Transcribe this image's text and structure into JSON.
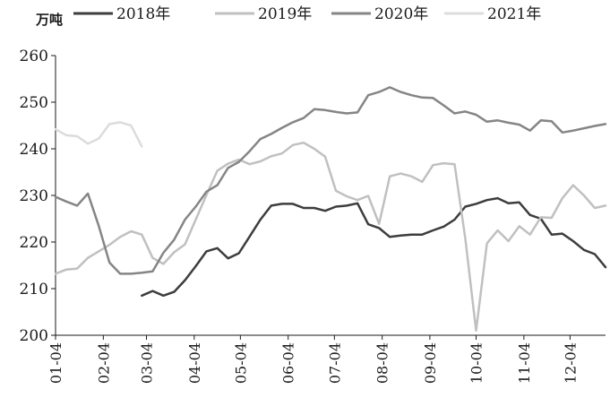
{
  "chart_data": {
    "type": "line",
    "unit_label": "万吨",
    "ylim": [
      200,
      260
    ],
    "yticks": [
      200,
      210,
      220,
      230,
      240,
      250,
      260
    ],
    "weeks": 52,
    "xticks": [
      {
        "label": "01-04",
        "week": 0
      },
      {
        "label": "02-04",
        "week": 4.43
      },
      {
        "label": "03-04",
        "week": 8.43
      },
      {
        "label": "04-04",
        "week": 12.86
      },
      {
        "label": "05-04",
        "week": 17.14
      },
      {
        "label": "06-04",
        "week": 21.57
      },
      {
        "label": "07-04",
        "week": 25.86
      },
      {
        "label": "08-04",
        "week": 30.29
      },
      {
        "label": "09-04",
        "week": 34.71
      },
      {
        "label": "10-04",
        "week": 39.0
      },
      {
        "label": "11-04",
        "week": 43.43
      },
      {
        "label": "12-04",
        "week": 47.71
      }
    ],
    "legend": {
      "position": "top"
    },
    "series": [
      {
        "name": "2018年",
        "color": "#3d3d3d",
        "start_week": 8,
        "values": [
          208.5,
          209.5,
          208.5,
          209.3,
          211.8,
          214.8,
          218.0,
          218.7,
          216.5,
          217.6,
          221.2,
          224.8,
          227.8,
          228.2,
          228.2,
          227.3,
          227.3,
          226.7,
          227.6,
          227.8,
          228.3,
          223.8,
          223.0,
          221.1,
          221.4,
          221.6,
          221.6,
          222.5,
          223.3,
          224.8,
          227.6,
          228.2,
          229.0,
          229.4,
          228.3,
          228.5,
          225.8,
          225.0,
          221.6,
          221.8,
          220.2,
          218.3,
          217.4,
          214.6
        ]
      },
      {
        "name": "2019年",
        "color": "#c0c0c0",
        "start_week": 0,
        "values": [
          213.2,
          214.1,
          214.3,
          216.6,
          218.0,
          219.4,
          221.1,
          222.3,
          221.6,
          216.6,
          215.3,
          217.8,
          219.5,
          224.8,
          230.1,
          235.3,
          236.8,
          237.7,
          236.7,
          237.3,
          238.4,
          239.0,
          240.8,
          241.3,
          240.0,
          238.3,
          231.0,
          229.8,
          229.0,
          229.9,
          223.9,
          234.1,
          234.7,
          234.1,
          232.9,
          236.5,
          236.9,
          236.7,
          220.7,
          201.0,
          219.7,
          222.5,
          220.2,
          223.4,
          221.6,
          225.3,
          225.2,
          229.4,
          232.2,
          230.0,
          227.3,
          227.8
        ]
      },
      {
        "name": "2020年",
        "color": "#858585",
        "start_week": 0,
        "values": [
          229.7,
          228.7,
          227.8,
          230.4,
          223.5,
          215.6,
          213.2,
          213.2,
          213.4,
          213.7,
          217.7,
          220.5,
          224.8,
          227.6,
          230.8,
          232.2,
          235.9,
          237.2,
          239.5,
          242.1,
          243.2,
          244.5,
          245.7,
          246.6,
          248.5,
          248.3,
          247.9,
          247.6,
          247.8,
          251.5,
          252.2,
          253.2,
          252.2,
          251.5,
          251.0,
          250.9,
          249.3,
          247.6,
          248.0,
          247.3,
          245.8,
          246.1,
          245.6,
          245.2,
          243.9,
          246.1,
          245.9,
          243.5,
          243.9,
          244.4,
          244.9,
          245.3
        ]
      },
      {
        "name": "2021年",
        "color": "#dcdcdc",
        "start_week": 0,
        "values": [
          244.2,
          242.9,
          242.7,
          241.1,
          242.2,
          245.3,
          245.7,
          245.0,
          240.5
        ]
      }
    ]
  }
}
